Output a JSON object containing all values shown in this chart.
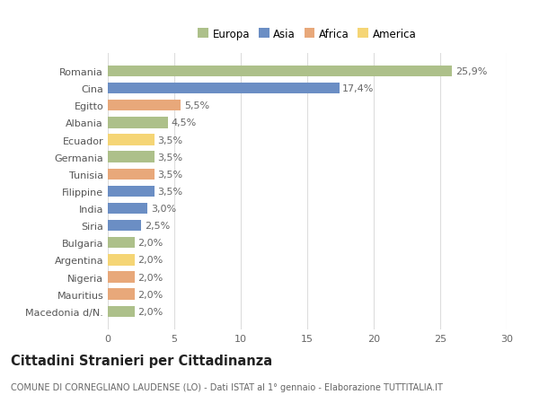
{
  "countries": [
    "Romania",
    "Cina",
    "Egitto",
    "Albania",
    "Ecuador",
    "Germania",
    "Tunisia",
    "Filippine",
    "India",
    "Siria",
    "Bulgaria",
    "Argentina",
    "Nigeria",
    "Mauritius",
    "Macedonia d/N."
  ],
  "values": [
    25.9,
    17.4,
    5.5,
    4.5,
    3.5,
    3.5,
    3.5,
    3.5,
    3.0,
    2.5,
    2.0,
    2.0,
    2.0,
    2.0,
    2.0
  ],
  "labels": [
    "25,9%",
    "17,4%",
    "5,5%",
    "4,5%",
    "3,5%",
    "3,5%",
    "3,5%",
    "3,5%",
    "3,0%",
    "2,5%",
    "2,0%",
    "2,0%",
    "2,0%",
    "2,0%",
    "2,0%"
  ],
  "continents": [
    "Europa",
    "Asia",
    "Africa",
    "Europa",
    "America",
    "Europa",
    "Africa",
    "Asia",
    "Asia",
    "Asia",
    "Europa",
    "America",
    "Africa",
    "Africa",
    "Europa"
  ],
  "colors": {
    "Europa": "#adc08a",
    "Asia": "#6b8ec4",
    "Africa": "#e8a87a",
    "America": "#f5d575"
  },
  "legend_order": [
    "Europa",
    "Asia",
    "Africa",
    "America"
  ],
  "xlim": [
    0,
    30
  ],
  "xticks": [
    0,
    5,
    10,
    15,
    20,
    25,
    30
  ],
  "title": "Cittadini Stranieri per Cittadinanza",
  "subtitle": "COMUNE DI CORNEGLIANO LAUDENSE (LO) - Dati ISTAT al 1° gennaio - Elaborazione TUTTITALIA.IT",
  "bg_color": "#ffffff",
  "plot_bg_color": "#ffffff",
  "grid_color": "#dddddd",
  "bar_height": 0.65,
  "label_fontsize": 8.0,
  "tick_fontsize": 8.0,
  "title_fontsize": 10.5,
  "subtitle_fontsize": 7.0
}
